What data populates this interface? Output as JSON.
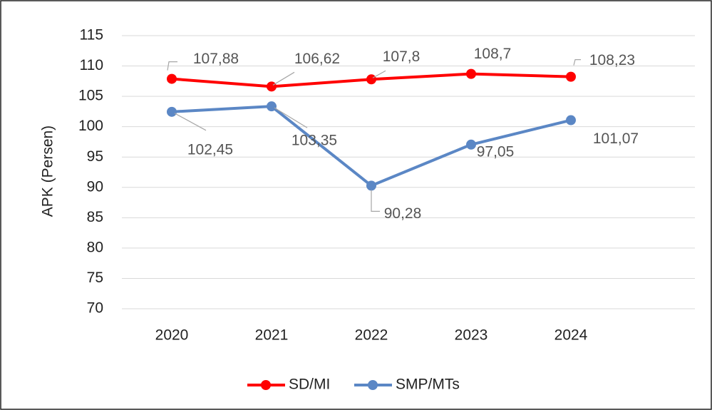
{
  "chart_data": {
    "type": "line",
    "y_axis_label": "APK (Persen)",
    "categories": [
      "2020",
      "2021",
      "2022",
      "2023",
      "2024"
    ],
    "series": [
      {
        "name": "SD/MI",
        "color": "#ff0000",
        "values": [
          107.88,
          106.62,
          107.8,
          108.7,
          108.23
        ],
        "value_labels": [
          "107,88",
          "106,62",
          "107,8",
          "108,7",
          "108,23"
        ]
      },
      {
        "name": "SMP/MTs",
        "color": "#5b87c5",
        "values": [
          102.45,
          103.35,
          90.28,
          97.05,
          101.07
        ],
        "value_labels": [
          "102,45",
          "103,35",
          "90,28",
          "97,05",
          "101,07"
        ]
      }
    ],
    "ylim": [
      70,
      115
    ],
    "yticks": [
      70,
      75,
      80,
      85,
      90,
      95,
      100,
      105,
      110,
      115
    ],
    "grid": true,
    "legend": "bottom"
  }
}
